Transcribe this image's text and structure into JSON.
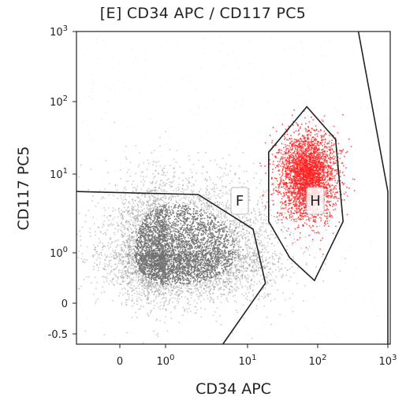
{
  "chart_data": {
    "type": "scatter",
    "title": "[E] CD34 APC / CD117 PC5",
    "xlabel": "CD34 APC",
    "ylabel": "CD117 PC5",
    "x_scale": "log-biexponential",
    "y_scale": "log-biexponential",
    "xlim": [
      -0.6,
      1000
    ],
    "ylim": [
      -0.7,
      1000
    ],
    "x_ticks": [
      {
        "value": 0,
        "label": "0"
      },
      {
        "value": 1,
        "label": "10⁰"
      },
      {
        "value": 10,
        "label": "10¹"
      },
      {
        "value": 100,
        "label": "10²"
      },
      {
        "value": 1000,
        "label": "10³"
      }
    ],
    "y_ticks": [
      {
        "value": -0.5,
        "label": "-0.5"
      },
      {
        "value": 0,
        "label": "0"
      },
      {
        "value": 1,
        "label": "10⁰"
      },
      {
        "value": 10,
        "label": "10¹"
      },
      {
        "value": 100,
        "label": "10²"
      },
      {
        "value": 1000,
        "label": "10³"
      }
    ],
    "grid": false,
    "series": [
      {
        "color": "#707070",
        "center": [
          1.2,
          1.0
        ],
        "spread_decades": [
          0.55,
          0.45
        ],
        "density": "high"
      },
      {
        "color": "#ff2020",
        "center": [
          70,
          10
        ],
        "spread_decades": [
          0.2,
          0.28
        ],
        "density": "high"
      }
    ],
    "gates": [
      {
        "label": "F",
        "vertices": [
          [
            -0.6,
            6
          ],
          [
            2.5,
            5.5
          ],
          [
            12,
            2
          ],
          [
            18,
            0.4
          ],
          [
            5,
            -0.7
          ]
        ]
      },
      {
        "label": "H",
        "vertices": [
          [
            70,
            85
          ],
          [
            180,
            30
          ],
          [
            230,
            2.5
          ],
          [
            90,
            0.45
          ],
          [
            40,
            0.9
          ],
          [
            20,
            2.5
          ],
          [
            20,
            20
          ]
        ]
      },
      {
        "label": "",
        "vertices": [
          [
            380,
            1000
          ],
          [
            1000,
            6
          ],
          [
            1000,
            -0.7
          ]
        ]
      }
    ]
  }
}
